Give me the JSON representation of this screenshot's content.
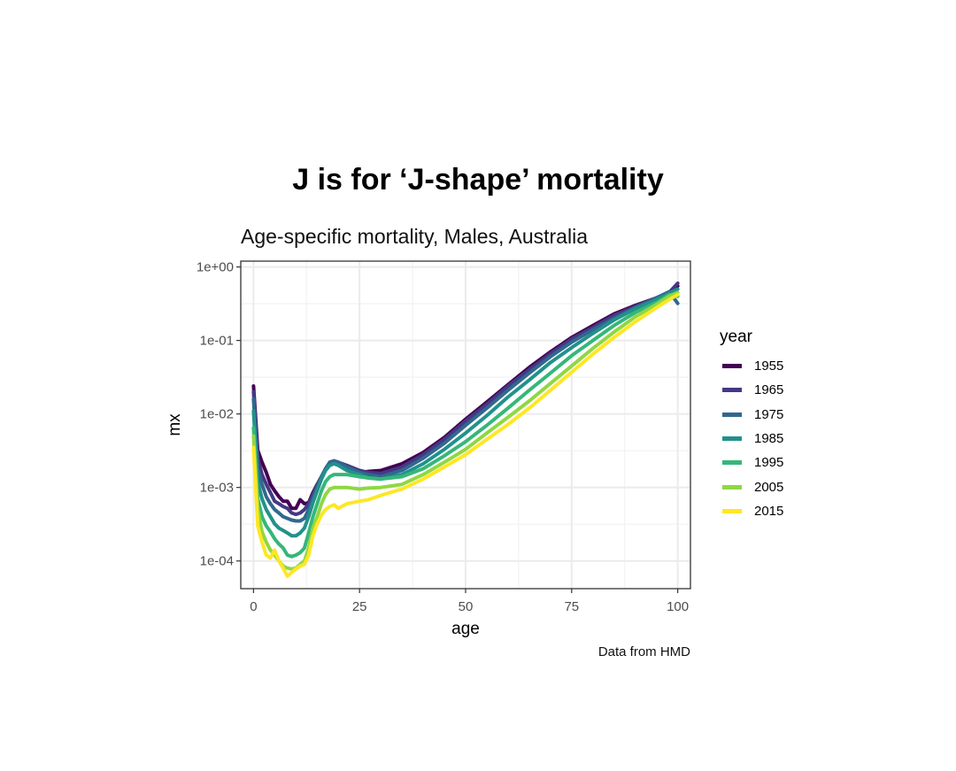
{
  "title": "J is for ‘J-shape’ mortality",
  "caption": "Data from HMD",
  "chart_data": {
    "type": "line",
    "title": "Age-specific mortality, Males, Australia",
    "xlabel": "age",
    "ylabel": "mx",
    "xlim": [
      -3,
      103
    ],
    "ylim": [
      4.2e-05,
      1.2
    ],
    "y_scale": "log",
    "grid": true,
    "legend_title": "year",
    "legend_position": "right",
    "x_ticks": [
      0,
      25,
      50,
      75,
      100
    ],
    "x_tick_labels": [
      "0",
      "25",
      "50",
      "75",
      "100"
    ],
    "y_ticks": [
      0.0001,
      0.001,
      0.01,
      0.1,
      1
    ],
    "y_tick_labels": [
      "1e-04",
      "1e-03",
      "1e-02",
      "1e-01",
      "1e+00"
    ],
    "series": [
      {
        "name": "1955",
        "color": "#440154",
        "points": [
          [
            0,
            0.024
          ],
          [
            1,
            0.0032
          ],
          [
            2,
            0.0022
          ],
          [
            3,
            0.0016
          ],
          [
            4,
            0.0011
          ],
          [
            5,
            0.0009
          ],
          [
            6,
            0.00075
          ],
          [
            7,
            0.00065
          ],
          [
            8,
            0.00065
          ],
          [
            9,
            0.00052
          ],
          [
            10,
            0.00052
          ],
          [
            11,
            0.00068
          ],
          [
            12,
            0.0006
          ],
          [
            13,
            0.00062
          ],
          [
            14,
            0.00085
          ],
          [
            15,
            0.0011
          ],
          [
            16,
            0.0013
          ],
          [
            17,
            0.0018
          ],
          [
            18,
            0.0021
          ],
          [
            19,
            0.0022
          ],
          [
            20,
            0.0022
          ],
          [
            22,
            0.0019
          ],
          [
            25,
            0.0016
          ],
          [
            27,
            0.00165
          ],
          [
            30,
            0.0017
          ],
          [
            35,
            0.0021
          ],
          [
            40,
            0.003
          ],
          [
            45,
            0.0048
          ],
          [
            50,
            0.0085
          ],
          [
            55,
            0.0145
          ],
          [
            60,
            0.025
          ],
          [
            65,
            0.043
          ],
          [
            70,
            0.07
          ],
          [
            75,
            0.11
          ],
          [
            80,
            0.16
          ],
          [
            85,
            0.23
          ],
          [
            90,
            0.3
          ],
          [
            95,
            0.38
          ],
          [
            98,
            0.45
          ],
          [
            100,
            0.55
          ]
        ]
      },
      {
        "name": "1965",
        "color": "#443983",
        "points": [
          [
            0,
            0.02
          ],
          [
            1,
            0.0025
          ],
          [
            2,
            0.0015
          ],
          [
            3,
            0.0011
          ],
          [
            4,
            0.00085
          ],
          [
            5,
            0.00065
          ],
          [
            6,
            0.0006
          ],
          [
            7,
            0.00055
          ],
          [
            8,
            0.00052
          ],
          [
            9,
            0.00045
          ],
          [
            10,
            0.00043
          ],
          [
            11,
            0.00045
          ],
          [
            12,
            0.0005
          ],
          [
            13,
            0.0006
          ],
          [
            14,
            0.0008
          ],
          [
            15,
            0.0011
          ],
          [
            16,
            0.0014
          ],
          [
            17,
            0.0018
          ],
          [
            18,
            0.0022
          ],
          [
            19,
            0.0023
          ],
          [
            20,
            0.0022
          ],
          [
            22,
            0.002
          ],
          [
            25,
            0.0017
          ],
          [
            27,
            0.0016
          ],
          [
            30,
            0.00155
          ],
          [
            35,
            0.0019
          ],
          [
            40,
            0.0028
          ],
          [
            45,
            0.0045
          ],
          [
            50,
            0.008
          ],
          [
            55,
            0.0135
          ],
          [
            60,
            0.024
          ],
          [
            65,
            0.04
          ],
          [
            70,
            0.066
          ],
          [
            75,
            0.105
          ],
          [
            80,
            0.15
          ],
          [
            85,
            0.22
          ],
          [
            90,
            0.29
          ],
          [
            95,
            0.38
          ],
          [
            98,
            0.45
          ],
          [
            100,
            0.6
          ]
        ]
      },
      {
        "name": "1975",
        "color": "#31688e",
        "points": [
          [
            0,
            0.016
          ],
          [
            1,
            0.0018
          ],
          [
            2,
            0.0011
          ],
          [
            3,
            0.00075
          ],
          [
            4,
            0.0006
          ],
          [
            5,
            0.0005
          ],
          [
            6,
            0.00045
          ],
          [
            7,
            0.0004
          ],
          [
            8,
            0.00038
          ],
          [
            9,
            0.00036
          ],
          [
            10,
            0.00035
          ],
          [
            11,
            0.00035
          ],
          [
            12,
            0.00038
          ],
          [
            13,
            0.0005
          ],
          [
            14,
            0.0007
          ],
          [
            15,
            0.001
          ],
          [
            16,
            0.0014
          ],
          [
            17,
            0.0018
          ],
          [
            18,
            0.0022
          ],
          [
            19,
            0.0023
          ],
          [
            20,
            0.0022
          ],
          [
            22,
            0.0019
          ],
          [
            25,
            0.0016
          ],
          [
            27,
            0.0015
          ],
          [
            30,
            0.0014
          ],
          [
            35,
            0.0017
          ],
          [
            40,
            0.0025
          ],
          [
            45,
            0.004
          ],
          [
            50,
            0.007
          ],
          [
            55,
            0.012
          ],
          [
            60,
            0.021
          ],
          [
            65,
            0.036
          ],
          [
            70,
            0.06
          ],
          [
            75,
            0.095
          ],
          [
            80,
            0.14
          ],
          [
            85,
            0.2
          ],
          [
            90,
            0.28
          ],
          [
            95,
            0.38
          ],
          [
            98,
            0.46
          ],
          [
            100,
            0.32
          ]
        ]
      },
      {
        "name": "1985",
        "color": "#21918c",
        "points": [
          [
            0,
            0.011
          ],
          [
            1,
            0.0012
          ],
          [
            2,
            0.0007
          ],
          [
            3,
            0.0005
          ],
          [
            4,
            0.0004
          ],
          [
            5,
            0.00032
          ],
          [
            6,
            0.00028
          ],
          [
            7,
            0.00026
          ],
          [
            8,
            0.00024
          ],
          [
            9,
            0.00022
          ],
          [
            10,
            0.00022
          ],
          [
            11,
            0.00024
          ],
          [
            12,
            0.00028
          ],
          [
            13,
            0.0004
          ],
          [
            14,
            0.00062
          ],
          [
            15,
            0.0009
          ],
          [
            16,
            0.0013
          ],
          [
            17,
            0.0017
          ],
          [
            18,
            0.002
          ],
          [
            19,
            0.0021
          ],
          [
            20,
            0.002
          ],
          [
            22,
            0.0017
          ],
          [
            25,
            0.0015
          ],
          [
            27,
            0.00135
          ],
          [
            30,
            0.0013
          ],
          [
            35,
            0.0015
          ],
          [
            40,
            0.0021
          ],
          [
            45,
            0.0033
          ],
          [
            50,
            0.0055
          ],
          [
            55,
            0.0095
          ],
          [
            60,
            0.017
          ],
          [
            65,
            0.029
          ],
          [
            70,
            0.05
          ],
          [
            75,
            0.08
          ],
          [
            80,
            0.125
          ],
          [
            85,
            0.19
          ],
          [
            90,
            0.27
          ],
          [
            95,
            0.36
          ],
          [
            98,
            0.44
          ],
          [
            100,
            0.5
          ]
        ]
      },
      {
        "name": "1995",
        "color": "#35b779",
        "points": [
          [
            0,
            0.0065
          ],
          [
            1,
            0.0007
          ],
          [
            2,
            0.0004
          ],
          [
            3,
            0.0003
          ],
          [
            4,
            0.00025
          ],
          [
            5,
            0.0002
          ],
          [
            6,
            0.00017
          ],
          [
            7,
            0.00015
          ],
          [
            8,
            0.00012
          ],
          [
            9,
            0.000115
          ],
          [
            10,
            0.00012
          ],
          [
            11,
            0.00013
          ],
          [
            12,
            0.00015
          ],
          [
            13,
            0.00024
          ],
          [
            14,
            0.0004
          ],
          [
            15,
            0.0006
          ],
          [
            16,
            0.0009
          ],
          [
            17,
            0.0012
          ],
          [
            18,
            0.0014
          ],
          [
            19,
            0.0015
          ],
          [
            20,
            0.0015
          ],
          [
            22,
            0.0015
          ],
          [
            25,
            0.0014
          ],
          [
            27,
            0.00135
          ],
          [
            30,
            0.0013
          ],
          [
            35,
            0.0014
          ],
          [
            40,
            0.0018
          ],
          [
            45,
            0.0027
          ],
          [
            50,
            0.0042
          ],
          [
            55,
            0.007
          ],
          [
            60,
            0.012
          ],
          [
            65,
            0.021
          ],
          [
            70,
            0.036
          ],
          [
            75,
            0.062
          ],
          [
            80,
            0.1
          ],
          [
            85,
            0.16
          ],
          [
            90,
            0.24
          ],
          [
            95,
            0.33
          ],
          [
            98,
            0.42
          ],
          [
            100,
            0.4
          ]
        ]
      },
      {
        "name": "2005",
        "color": "#90d743",
        "points": [
          [
            0,
            0.005
          ],
          [
            1,
            0.0005
          ],
          [
            2,
            0.00025
          ],
          [
            3,
            0.00018
          ],
          [
            4,
            0.00014
          ],
          [
            5,
            0.00012
          ],
          [
            6,
            0.0001
          ],
          [
            7,
            8.5e-05
          ],
          [
            8,
            8e-05
          ],
          [
            9,
            7.8e-05
          ],
          [
            10,
            8e-05
          ],
          [
            11,
            9e-05
          ],
          [
            12,
            0.0001
          ],
          [
            13,
            0.00015
          ],
          [
            14,
            0.00028
          ],
          [
            15,
            0.0004
          ],
          [
            16,
            0.0006
          ],
          [
            17,
            0.0008
          ],
          [
            18,
            0.00095
          ],
          [
            19,
            0.001
          ],
          [
            20,
            0.001
          ],
          [
            22,
            0.001
          ],
          [
            25,
            0.00095
          ],
          [
            27,
            0.00098
          ],
          [
            30,
            0.001
          ],
          [
            35,
            0.0011
          ],
          [
            40,
            0.0015
          ],
          [
            45,
            0.0022
          ],
          [
            50,
            0.0033
          ],
          [
            55,
            0.0055
          ],
          [
            60,
            0.009
          ],
          [
            65,
            0.015
          ],
          [
            70,
            0.026
          ],
          [
            75,
            0.045
          ],
          [
            80,
            0.078
          ],
          [
            85,
            0.13
          ],
          [
            90,
            0.21
          ],
          [
            95,
            0.31
          ],
          [
            98,
            0.4
          ],
          [
            100,
            0.45
          ]
        ]
      },
      {
        "name": "2015",
        "color": "#fde725",
        "points": [
          [
            0,
            0.0035
          ],
          [
            1,
            0.0003
          ],
          [
            2,
            0.00018
          ],
          [
            3,
            0.00012
          ],
          [
            4,
            0.00011
          ],
          [
            5,
            0.00014
          ],
          [
            6,
            0.0001
          ],
          [
            7,
            8e-05
          ],
          [
            8,
            6.2e-05
          ],
          [
            9,
            7e-05
          ],
          [
            10,
            7.8e-05
          ],
          [
            11,
            8.5e-05
          ],
          [
            12,
            9e-05
          ],
          [
            13,
            0.00012
          ],
          [
            14,
            0.00022
          ],
          [
            15,
            0.00032
          ],
          [
            16,
            0.00042
          ],
          [
            17,
            0.0005
          ],
          [
            18,
            0.00055
          ],
          [
            19,
            0.00058
          ],
          [
            20,
            0.00052
          ],
          [
            22,
            0.0006
          ],
          [
            25,
            0.00065
          ],
          [
            27,
            0.00068
          ],
          [
            30,
            0.00078
          ],
          [
            35,
            0.00095
          ],
          [
            40,
            0.0013
          ],
          [
            45,
            0.0019
          ],
          [
            50,
            0.0028
          ],
          [
            55,
            0.0045
          ],
          [
            60,
            0.0072
          ],
          [
            65,
            0.012
          ],
          [
            70,
            0.021
          ],
          [
            75,
            0.037
          ],
          [
            80,
            0.065
          ],
          [
            85,
            0.11
          ],
          [
            90,
            0.18
          ],
          [
            95,
            0.28
          ],
          [
            98,
            0.36
          ],
          [
            100,
            0.42
          ]
        ]
      }
    ]
  }
}
